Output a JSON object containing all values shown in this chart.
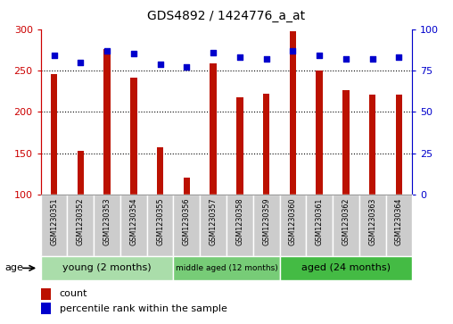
{
  "title": "GDS4892 / 1424776_a_at",
  "samples": [
    "GSM1230351",
    "GSM1230352",
    "GSM1230353",
    "GSM1230354",
    "GSM1230355",
    "GSM1230356",
    "GSM1230357",
    "GSM1230358",
    "GSM1230359",
    "GSM1230360",
    "GSM1230361",
    "GSM1230362",
    "GSM1230363",
    "GSM1230364"
  ],
  "counts": [
    246,
    153,
    276,
    241,
    157,
    120,
    259,
    217,
    222,
    298,
    250,
    226,
    221,
    221
  ],
  "percentiles": [
    84,
    80,
    87,
    85,
    79,
    77,
    86,
    83,
    82,
    87,
    84,
    82,
    82,
    83
  ],
  "ylim_left": [
    100,
    300
  ],
  "ylim_right": [
    0,
    100
  ],
  "yticks_left": [
    100,
    150,
    200,
    250,
    300
  ],
  "yticks_right": [
    0,
    25,
    50,
    75,
    100
  ],
  "bar_color": "#BB1100",
  "dot_color": "#0000CC",
  "bar_width": 0.25,
  "groups": [
    {
      "label": "young (2 months)",
      "start": 0,
      "end": 5
    },
    {
      "label": "middle aged (12 months)",
      "start": 5,
      "end": 9
    },
    {
      "label": "aged (24 months)",
      "start": 9,
      "end": 14
    }
  ],
  "group_colors": [
    "#aaddaa",
    "#77cc77",
    "#44bb44"
  ],
  "left_axis_color": "#CC0000",
  "right_axis_color": "#0000CC",
  "legend_count_label": "count",
  "legend_pct_label": "percentile rank within the sample",
  "age_label": "age",
  "tick_label_bg": "#cccccc",
  "tick_label_border": "#aaaaaa"
}
